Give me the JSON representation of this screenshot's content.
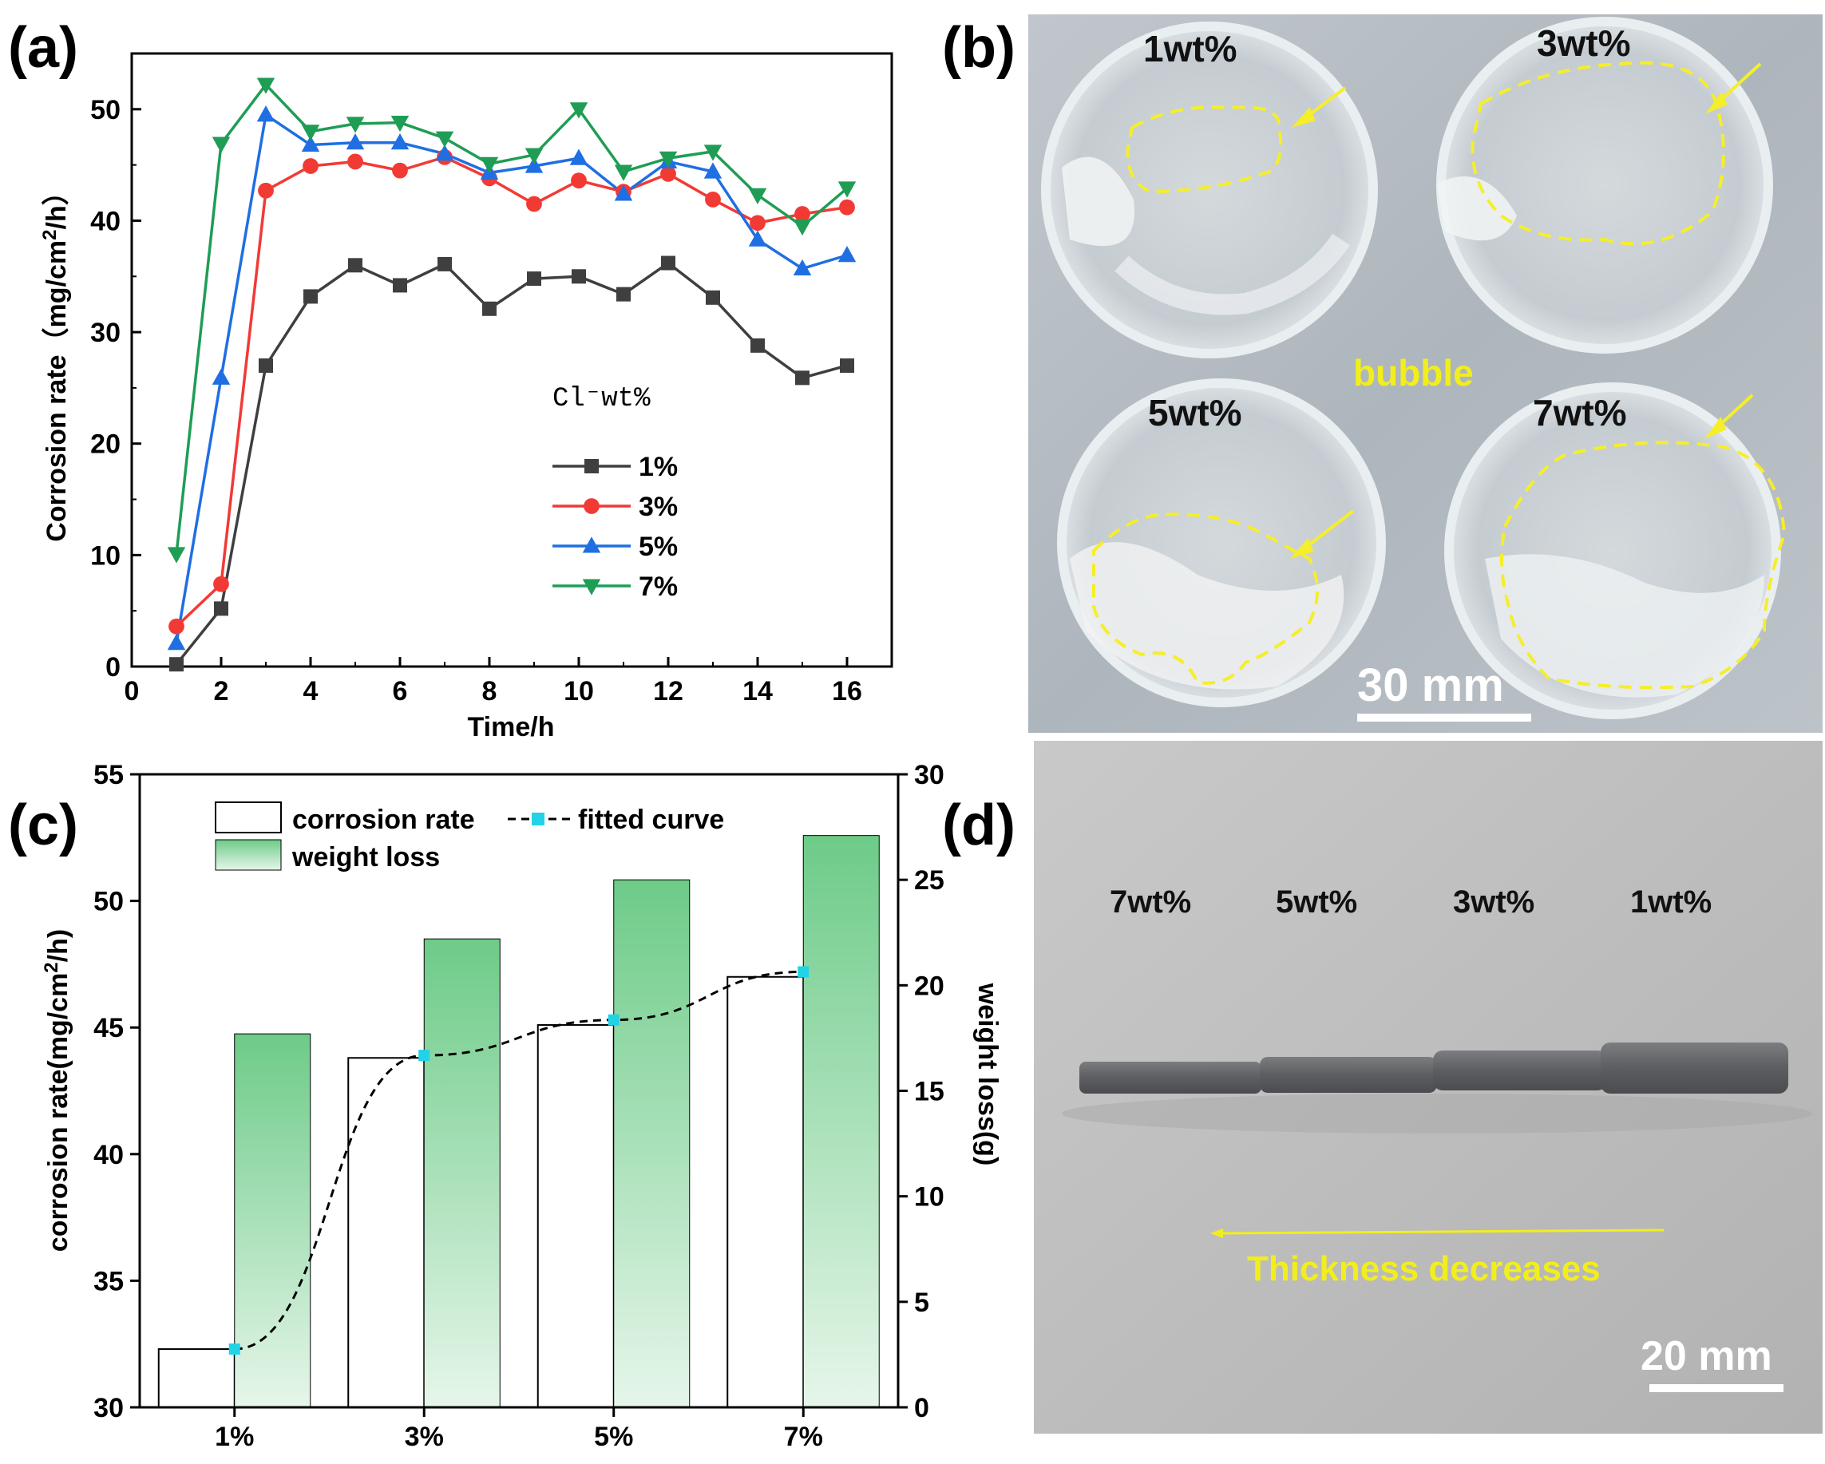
{
  "panel_labels": {
    "a": "(a)",
    "b": "(b)",
    "c": "(c)",
    "d": "(d)"
  },
  "chart_data": [
    {
      "type": "line",
      "panel": "a",
      "xlabel": "Time/h",
      "ylabel": "Corrosion rate（mg/cm2/h）",
      "ylabel_parts": {
        "pre": "Corrosion rate（mg/cm",
        "sup": "2",
        "post": "/h）"
      },
      "xlim": [
        0,
        17
      ],
      "ylim": [
        0,
        55
      ],
      "xticks": [
        0,
        2,
        4,
        6,
        8,
        10,
        12,
        14,
        16
      ],
      "yticks": [
        0,
        10,
        20,
        30,
        40,
        50
      ],
      "legend_title": "Cl⁻wt%",
      "legend_position": "center-right",
      "x": [
        1,
        2,
        3,
        4,
        5,
        6,
        7,
        8,
        9,
        10,
        11,
        12,
        13,
        14,
        15,
        16
      ],
      "series": [
        {
          "name": "1%",
          "color": "#3f3f3f",
          "marker": "square",
          "values": [
            0.2,
            5.2,
            27.0,
            33.2,
            36.0,
            34.2,
            36.1,
            32.1,
            34.8,
            35.0,
            33.4,
            36.2,
            33.1,
            28.8,
            25.9,
            27.0
          ]
        },
        {
          "name": "3%",
          "color": "#f23a35",
          "marker": "circle",
          "values": [
            3.6,
            7.4,
            42.7,
            44.9,
            45.3,
            44.5,
            45.7,
            43.8,
            41.5,
            43.6,
            42.6,
            44.2,
            41.9,
            39.8,
            40.6,
            41.2
          ]
        },
        {
          "name": "5%",
          "color": "#1f6fe3",
          "marker": "triangle-up",
          "values": [
            2.1,
            25.9,
            49.5,
            46.8,
            47.0,
            47.0,
            46.0,
            44.3,
            44.9,
            45.6,
            42.4,
            45.3,
            44.4,
            38.3,
            35.7,
            36.9
          ]
        },
        {
          "name": "7%",
          "color": "#1f9d55",
          "marker": "triangle-down",
          "values": [
            10.1,
            46.9,
            52.2,
            48.0,
            48.7,
            48.8,
            47.4,
            45.1,
            45.9,
            50.0,
            44.4,
            45.6,
            46.2,
            42.3,
            39.5,
            42.9
          ]
        }
      ]
    },
    {
      "type": "bar",
      "panel": "c",
      "categories": [
        "1%",
        "3%",
        "5%",
        "7%"
      ],
      "ylabel_left": "corrosion rate(mg/cm2/h)",
      "ylabel_left_parts": {
        "pre": "corrosion rate(mg/cm",
        "sup": "2",
        "post": "/h)"
      },
      "ylabel_right": "weight loss(g)",
      "ylim_left": [
        30,
        55
      ],
      "ylim_right": [
        0,
        30
      ],
      "yticks_left": [
        30,
        35,
        40,
        45,
        50,
        55
      ],
      "yticks_right": [
        0,
        5,
        10,
        15,
        20,
        25,
        30
      ],
      "legend_position": "top-left",
      "series": [
        {
          "name": "corrosion rate",
          "axis": "left",
          "style": "outline",
          "values": [
            32.3,
            43.8,
            45.1,
            47.0
          ]
        },
        {
          "name": "weight loss",
          "axis": "right",
          "style": "gradient-green",
          "color": "#77cf92",
          "values": [
            17.7,
            22.2,
            25.0,
            27.1
          ]
        },
        {
          "name": "fitted curve",
          "axis": "left",
          "style": "dashed",
          "marker_color": "#22d3e6",
          "values": [
            32.3,
            43.9,
            45.3,
            47.2
          ]
        }
      ]
    }
  ],
  "photo_b": {
    "labels": [
      "1wt%",
      "3wt%",
      "5wt%",
      "7wt%"
    ],
    "center_label": "bubble",
    "scale_bar": "30 mm"
  },
  "photo_d": {
    "labels": [
      "7wt%",
      "5wt%",
      "3wt%",
      "1wt%"
    ],
    "caption": "Thickness decreases",
    "scale_bar": "20 mm"
  }
}
